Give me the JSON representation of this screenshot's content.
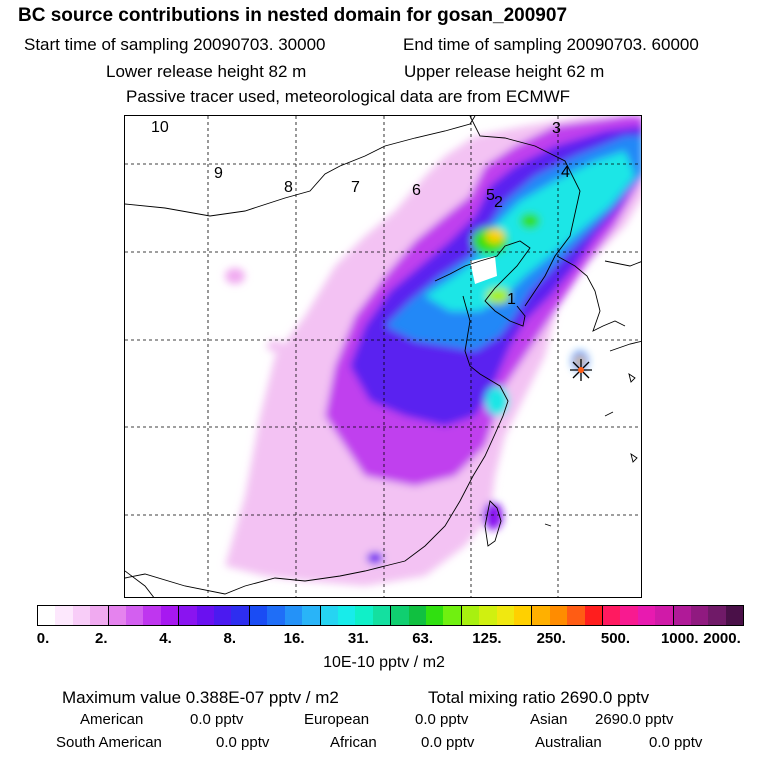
{
  "header": {
    "title": "BC  source contributions in nested domain for gosan_200907",
    "start_time": "Start time of sampling 20090703. 30000",
    "end_time": "End time of sampling 20090703. 60000",
    "lower_release": "Lower release height   82 m",
    "upper_release": "Upper release height   62 m",
    "tracer_note": "Passive tracer used, meteorological data are from ECMWF"
  },
  "map": {
    "region_labels": [
      "10",
      "9",
      "8",
      "7",
      "6",
      "5",
      "2",
      "3",
      "4",
      "1"
    ],
    "receptor_marker": "star-icon"
  },
  "colorbar": {
    "tick_labels": [
      "0.",
      "2.",
      "4.",
      "8.",
      "16.",
      "31.",
      "63.",
      "125.",
      "250.",
      "500.",
      "1000.",
      "2000."
    ],
    "unit": "10E-10 pptv / m2",
    "colors": [
      "#ffffff",
      "#fde8fd",
      "#f8cdf8",
      "#f0aaf0",
      "#e583ee",
      "#d35ff0",
      "#bf36ef",
      "#a718f0",
      "#8a14f0",
      "#6a10f0",
      "#4b1af0",
      "#2e2ef0",
      "#1a4cf4",
      "#1f6ef7",
      "#2492f8",
      "#29b4f8",
      "#26d4f2",
      "#18ecea",
      "#10f0c8",
      "#14e0a0",
      "#10cf70",
      "#10c040",
      "#30e010",
      "#70f010",
      "#a8f010",
      "#d0f010",
      "#f0e810",
      "#ffd000",
      "#ffb000",
      "#ff8c00",
      "#ff5c14",
      "#ff1e1e",
      "#ff1a60",
      "#f81a90",
      "#e81ab0",
      "#d01aa8",
      "#b01a98",
      "#901a80",
      "#701a68",
      "#4a1048"
    ]
  },
  "stats": {
    "max_label": "Maximum value  0.388E-07 pptv / m2",
    "total_label": "Total mixing ratio     2690.0 pptv",
    "rows": [
      [
        {
          "name": "American",
          "value": "0.0 pptv"
        },
        {
          "name": "European",
          "value": "0.0 pptv"
        },
        {
          "name": "Asian",
          "value": "2690.0 pptv"
        }
      ],
      [
        {
          "name": "South American",
          "value": "0.0 pptv"
        },
        {
          "name": "African",
          "value": "0.0 pptv"
        },
        {
          "name": "Australian",
          "value": "0.0 pptv"
        }
      ]
    ]
  }
}
